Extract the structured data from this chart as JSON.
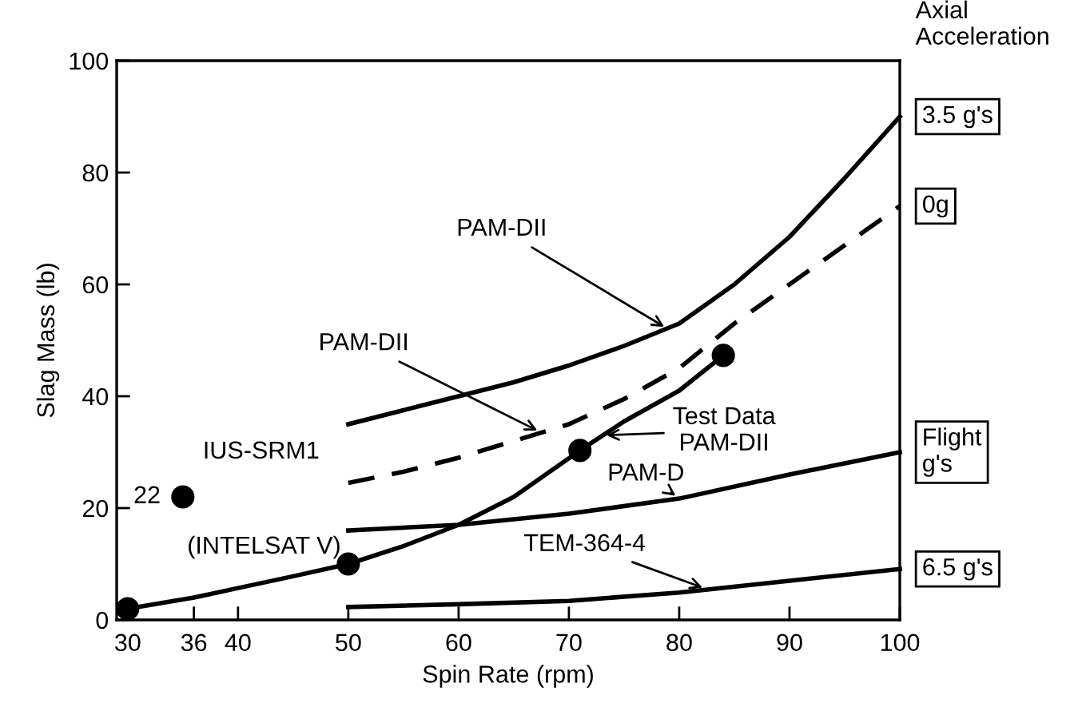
{
  "chart_data": {
    "type": "line",
    "xlabel": "Spin Rate (rpm)",
    "ylabel": "Slag Mass (lb)",
    "legend_title": "Axial\nAcceleration",
    "xlim": [
      29,
      100
    ],
    "ylim": [
      0,
      100
    ],
    "xticks": [
      30,
      36,
      40,
      50,
      60,
      70,
      80,
      90,
      100
    ],
    "yticks": [
      0,
      20,
      40,
      60,
      80,
      100
    ],
    "grid": false,
    "legend": false,
    "series": [
      {
        "name": "3.5 g's",
        "color": "#000000",
        "line_style": "solid",
        "x": [
          50,
          55,
          60,
          65,
          70,
          75,
          80,
          85,
          90,
          95,
          100
        ],
        "values": [
          35,
          37.5,
          40,
          42.5,
          45.5,
          49,
          53,
          60,
          68.5,
          79,
          90
        ]
      },
      {
        "name": "0g",
        "color": "#000000",
        "line_style": "dashed",
        "x": [
          50,
          55,
          60,
          65,
          70,
          75,
          80,
          85,
          90,
          95,
          100
        ],
        "values": [
          24.5,
          26.5,
          29,
          32,
          35,
          39.5,
          45,
          53,
          60,
          67,
          74
        ]
      },
      {
        "color": "#000000",
        "line_style": "solid",
        "x": [
          30,
          36,
          40,
          45,
          50,
          55,
          60,
          65,
          71,
          75,
          80,
          84
        ],
        "values": [
          2,
          4,
          5.7,
          7.8,
          10,
          13.2,
          17,
          22,
          30.3,
          35.5,
          41,
          47.3
        ]
      },
      {
        "type": "scatter",
        "color": "#000000",
        "marker": "circle",
        "x": [
          30,
          50,
          71,
          84
        ],
        "values": [
          2,
          10,
          30.3,
          47.3
        ]
      },
      {
        "name": "Flight\ng's",
        "color": "#000000",
        "line_style": "solid",
        "x": [
          50,
          60,
          70,
          80,
          90,
          100
        ],
        "values": [
          16,
          17,
          19,
          21.7,
          26,
          30
        ]
      },
      {
        "name": "6.5 g's",
        "color": "#000000",
        "line_style": "solid",
        "x": [
          50,
          60,
          70,
          80,
          90,
          100
        ],
        "values": [
          2.3,
          2.8,
          3.4,
          4.9,
          7,
          9.1
        ]
      },
      {
        "type": "scatter",
        "color": "#000000",
        "marker": "circle",
        "x": [
          35
        ],
        "values": [
          22
        ],
        "value_labels": [
          "22"
        ]
      }
    ],
    "annotations": [
      {
        "text": "PAM-DII",
        "x": 79,
        "y": 52
      },
      {
        "text": "PAM-DII",
        "x": 67.5,
        "y": 33.5
      },
      {
        "text": "Test Data\nPAM-DII",
        "x": 73,
        "y": 33
      },
      {
        "text": "PAM-D",
        "x": 80,
        "y": 21.7
      },
      {
        "text": "TEM-364-4",
        "x": 82.5,
        "y": 5.5
      },
      "IUS-SRM1",
      "(INTELSAT V)"
    ]
  }
}
